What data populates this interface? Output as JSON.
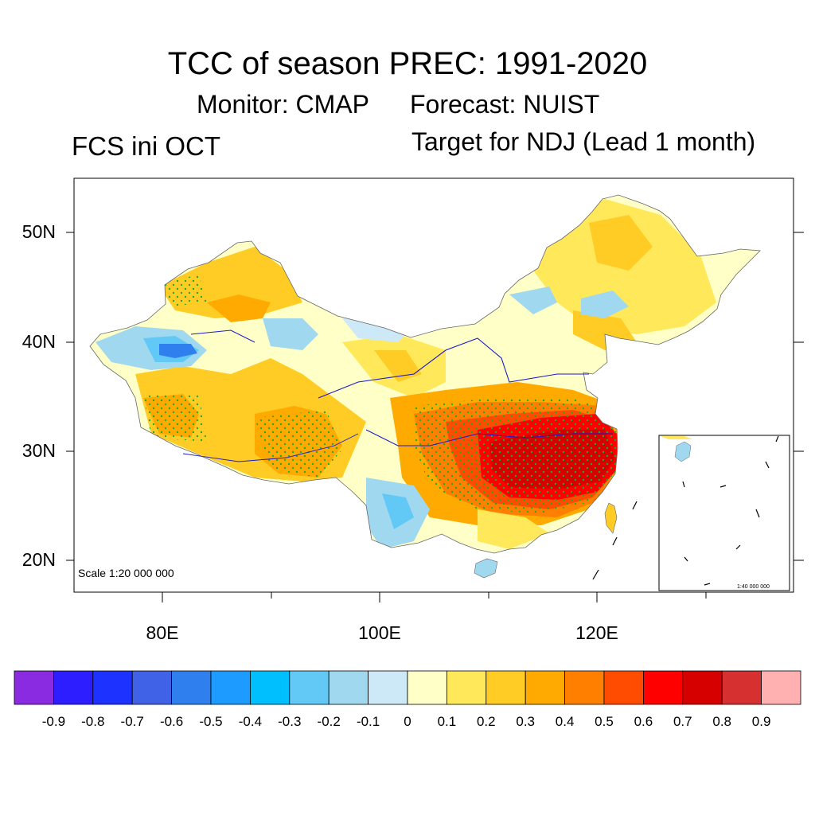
{
  "title": "TCC of season PREC: 1991-2020",
  "monitor_label": "Monitor: CMAP",
  "forecast_label": "Forecast: NUIST",
  "init_label": "FCS ini OCT",
  "target_label": "Target for NDJ (Lead 1 month)",
  "scale_label": "Scale 1:20 000 000",
  "inset_scale_label": "1:40 000 000",
  "map_data": {
    "lat_labels": [
      "50N",
      "40N",
      "30N",
      "20N"
    ],
    "lon_labels": [
      "80E",
      "100E",
      "120E"
    ]
  },
  "colorbar": {
    "labels": [
      "-0.9",
      "-0.8",
      "-0.7",
      "-0.6",
      "-0.5",
      "-0.4",
      "-0.3",
      "-0.2",
      "-0.1",
      "0",
      "0.1",
      "0.2",
      "0.3",
      "0.4",
      "0.5",
      "0.6",
      "0.7",
      "0.8",
      "0.9"
    ],
    "colors": [
      "#8a2be2",
      "#2d1eff",
      "#1e32ff",
      "#4062e6",
      "#2f80ee",
      "#1e9bff",
      "#00bfff",
      "#62c8f5",
      "#a0d8f0",
      "#cde9f7",
      "#ffffc8",
      "#ffe85a",
      "#ffcc26",
      "#ffaa00",
      "#ff8000",
      "#ff4c00",
      "#ff0000",
      "#d70000",
      "#d73030",
      "#ffb0b0"
    ]
  }
}
